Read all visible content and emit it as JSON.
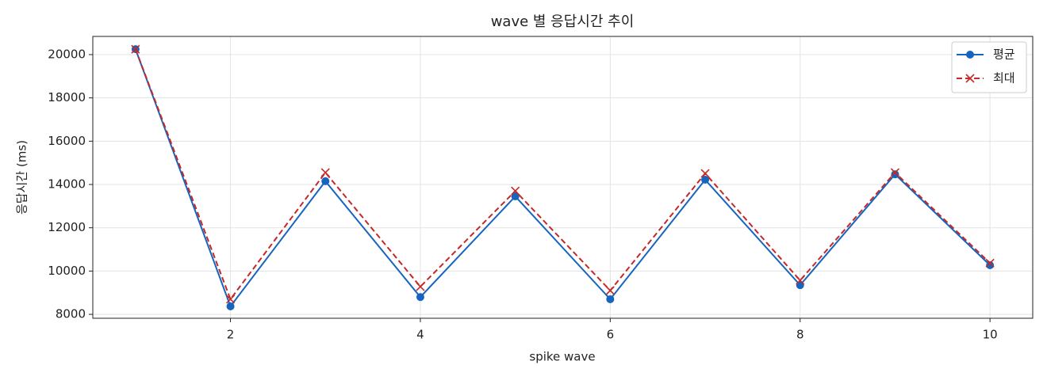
{
  "chart_data": {
    "type": "line",
    "title": "wave 별 응답시간 추이",
    "x_label": "spike wave",
    "y_label": "응답시간 (ms)",
    "x": [
      1,
      2,
      3,
      4,
      5,
      6,
      7,
      8,
      9,
      10
    ],
    "series": [
      {
        "name": "평균",
        "color": "#1565c0",
        "marker": "o",
        "linestyle": "solid",
        "values": [
          20250,
          8370,
          14150,
          8800,
          13450,
          8700,
          14220,
          9350,
          14470,
          10270
        ]
      },
      {
        "name": "최대",
        "color": "#c62828",
        "marker": "x",
        "linestyle": "dashed",
        "values": [
          20250,
          8700,
          14550,
          9280,
          13700,
          9100,
          14510,
          9570,
          14550,
          10370
        ]
      }
    ],
    "xlim": [
      0.55,
      10.45
    ],
    "xticks": [
      2,
      4,
      6,
      8,
      10
    ],
    "ylim": [
      7820,
      20840
    ],
    "yticks": [
      8000,
      10000,
      12000,
      14000,
      16000,
      18000,
      20000
    ],
    "grid": true,
    "legend": "upper right"
  }
}
